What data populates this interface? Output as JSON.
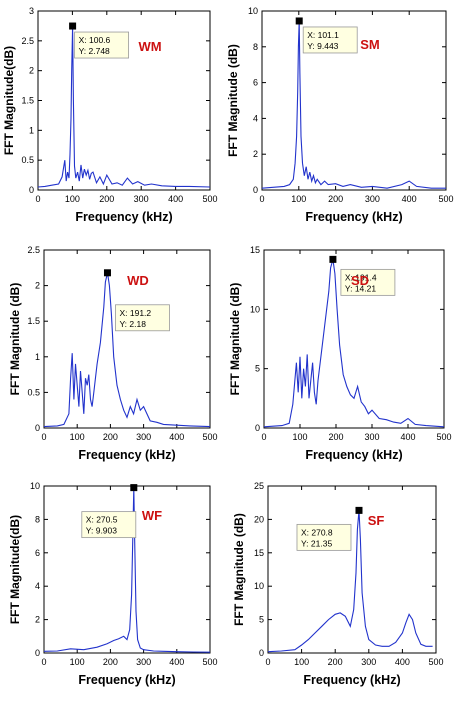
{
  "chart_data": [
    {
      "type": "line",
      "label": "WM",
      "xlabel": "Frequency (kHz)",
      "ylabel": "FFT Magnitude(dB)",
      "xlim": [
        0,
        500
      ],
      "ylim": [
        0,
        3
      ],
      "xticks": [
        "0",
        "100",
        "200",
        "300",
        "400",
        "500"
      ],
      "yticks": [
        "0",
        "0.5",
        "1",
        "1.5",
        "2",
        "2.5",
        "3"
      ],
      "datatip": {
        "x": 100.6,
        "y": 2.748,
        "x_text": "X: 100.6",
        "y_text": "Y: 2.748"
      },
      "series": [
        {
          "color": "#2233cc",
          "x": [
            0,
            20,
            40,
            60,
            70,
            78,
            82,
            86,
            90,
            93,
            96,
            98,
            100.6,
            103,
            106,
            110,
            115,
            120,
            125,
            130,
            135,
            140,
            145,
            150,
            155,
            160,
            170,
            180,
            190,
            200,
            215,
            230,
            245,
            260,
            275,
            290,
            310,
            330,
            360,
            400,
            440,
            500
          ],
          "y": [
            0.05,
            0.06,
            0.08,
            0.1,
            0.22,
            0.5,
            0.15,
            0.3,
            0.2,
            0.6,
            1.2,
            2.0,
            2.748,
            1.5,
            0.4,
            0.2,
            0.3,
            0.15,
            0.42,
            0.2,
            0.35,
            0.25,
            0.33,
            0.18,
            0.28,
            0.3,
            0.12,
            0.22,
            0.1,
            0.25,
            0.1,
            0.12,
            0.08,
            0.2,
            0.1,
            0.14,
            0.08,
            0.1,
            0.07,
            0.06,
            0.06,
            0.05
          ]
        }
      ]
    },
    {
      "type": "line",
      "label": "SM",
      "xlabel": "Frequency (kHz)",
      "ylabel": "FFT Magnitude (dB)",
      "xlim": [
        0,
        500
      ],
      "ylim": [
        0,
        10
      ],
      "xticks": [
        "0",
        "100",
        "200",
        "300",
        "400",
        "500"
      ],
      "yticks": [
        "0",
        "2",
        "4",
        "6",
        "8",
        "10"
      ],
      "datatip": {
        "x": 101.1,
        "y": 9.443,
        "x_text": "X: 101.1",
        "y_text": "Y: 9.443"
      },
      "series": [
        {
          "color": "#2233cc",
          "x": [
            0,
            30,
            60,
            75,
            85,
            90,
            94,
            97,
            99,
            101.1,
            103,
            106,
            110,
            115,
            120,
            125,
            130,
            135,
            140,
            145,
            150,
            160,
            170,
            180,
            200,
            220,
            240,
            270,
            300,
            340,
            380,
            400,
            420,
            460,
            500
          ],
          "y": [
            0.1,
            0.15,
            0.2,
            0.3,
            0.6,
            1.5,
            3.0,
            5.5,
            8.0,
            9.443,
            6.5,
            3.0,
            1.5,
            0.8,
            1.3,
            0.6,
            1.0,
            0.5,
            0.8,
            0.4,
            0.6,
            0.3,
            0.5,
            0.3,
            0.35,
            0.2,
            0.3,
            0.15,
            0.2,
            0.1,
            0.3,
            0.5,
            0.2,
            0.1,
            0.1
          ]
        }
      ]
    },
    {
      "type": "line",
      "label": "WD",
      "xlabel": "Frequency (kHz)",
      "ylabel": "FFT Magnitude (dB)",
      "xlim": [
        0,
        500
      ],
      "ylim": [
        0,
        2.5
      ],
      "xticks": [
        "0",
        "100",
        "200",
        "300",
        "400",
        "500"
      ],
      "yticks": [
        "0",
        "0.5",
        "1",
        "1.5",
        "2",
        "2.5"
      ],
      "datatip": {
        "x": 191.2,
        "y": 2.18,
        "x_text": "X: 191.2",
        "y_text": "Y: 2.18"
      },
      "series": [
        {
          "color": "#2233cc",
          "x": [
            0,
            40,
            60,
            75,
            80,
            85,
            90,
            95,
            100,
            105,
            110,
            115,
            120,
            125,
            130,
            135,
            140,
            145,
            150,
            160,
            170,
            180,
            185,
            191.2,
            197,
            203,
            210,
            220,
            230,
            240,
            250,
            260,
            270,
            280,
            290,
            300,
            320,
            340,
            360,
            400,
            440,
            500
          ],
          "y": [
            0.02,
            0.03,
            0.05,
            0.2,
            0.7,
            1.05,
            0.4,
            0.9,
            0.6,
            0.3,
            0.8,
            0.5,
            0.2,
            0.7,
            0.6,
            0.75,
            0.4,
            0.3,
            0.5,
            0.9,
            1.2,
            1.7,
            2.05,
            2.18,
            2.0,
            1.6,
            1.0,
            0.6,
            0.4,
            0.25,
            0.15,
            0.3,
            0.2,
            0.4,
            0.25,
            0.3,
            0.1,
            0.08,
            0.05,
            0.04,
            0.03,
            0.02
          ]
        }
      ]
    },
    {
      "type": "line",
      "label": "SD",
      "xlabel": "Frequency (kHz)",
      "ylabel": "FFT Magnitude (dB)",
      "xlim": [
        0,
        500
      ],
      "ylim": [
        0,
        15
      ],
      "xticks": [
        "0",
        "100",
        "200",
        "300",
        "400",
        "500"
      ],
      "yticks": [
        "0",
        "5",
        "10",
        "15"
      ],
      "datatip": {
        "x": 191.4,
        "y": 14.21,
        "x_text": "X: 191.4",
        "y_text": "Y: 14.21"
      },
      "series": [
        {
          "color": "#2233cc",
          "x": [
            0,
            50,
            70,
            80,
            90,
            95,
            100,
            105,
            110,
            115,
            120,
            125,
            130,
            135,
            140,
            145,
            150,
            160,
            170,
            180,
            185,
            191.4,
            197,
            203,
            210,
            220,
            230,
            240,
            250,
            260,
            270,
            280,
            290,
            300,
            320,
            340,
            360,
            380,
            400,
            420,
            450,
            500
          ],
          "y": [
            0.1,
            0.2,
            0.4,
            2.0,
            5.5,
            3.0,
            6.0,
            2.5,
            5.0,
            3.5,
            6.2,
            2.5,
            4.0,
            5.5,
            3.0,
            2.0,
            4.0,
            6.5,
            9.0,
            11.5,
            13.5,
            14.21,
            13.0,
            10.0,
            7.0,
            4.5,
            3.5,
            2.8,
            2.5,
            3.5,
            2.2,
            1.8,
            1.2,
            1.5,
            0.8,
            0.7,
            0.5,
            0.4,
            0.8,
            0.3,
            0.2,
            0.1
          ]
        }
      ]
    },
    {
      "type": "line",
      "label": "WF",
      "xlabel": "Frequency (kHz)",
      "ylabel": "FFT Magnitude(dB)",
      "xlim": [
        0,
        500
      ],
      "ylim": [
        0,
        10
      ],
      "xticks": [
        "0",
        "100",
        "200",
        "300",
        "400",
        "500"
      ],
      "yticks": [
        "0",
        "2",
        "4",
        "6",
        "8",
        "10"
      ],
      "datatip": {
        "x": 270.5,
        "y": 9.903,
        "x_text": "X: 270.5",
        "y_text": "Y: 9.903"
      },
      "series": [
        {
          "color": "#2233cc",
          "x": [
            0,
            40,
            80,
            120,
            160,
            190,
            210,
            225,
            240,
            250,
            258,
            264,
            268,
            270.5,
            273,
            277,
            282,
            290,
            300,
            330,
            360,
            400,
            450,
            500
          ],
          "y": [
            0.1,
            0.12,
            0.25,
            0.2,
            0.35,
            0.55,
            0.75,
            0.85,
            1.0,
            0.8,
            1.4,
            3.5,
            7.5,
            9.903,
            7.0,
            2.5,
            0.8,
            0.3,
            0.2,
            0.12,
            0.1,
            0.08,
            0.06,
            0.05
          ]
        }
      ]
    },
    {
      "type": "line",
      "label": "SF",
      "xlabel": "Frequency (kHz)",
      "ylabel": "FFT Magnitude (dB)",
      "xlim": [
        0,
        500
      ],
      "ylim": [
        0,
        25
      ],
      "xticks": [
        "0",
        "100",
        "200",
        "300",
        "400",
        "500"
      ],
      "yticks": [
        "0",
        "5",
        "10",
        "15",
        "20",
        "25"
      ],
      "datatip": {
        "x": 270.8,
        "y": 21.35,
        "x_text": "X: 270.8",
        "y_text": "Y: 21.35"
      },
      "series": [
        {
          "color": "#2233cc",
          "x": [
            0,
            40,
            80,
            100,
            120,
            140,
            160,
            180,
            200,
            215,
            230,
            245,
            255,
            262,
            266,
            270.8,
            275,
            280,
            290,
            300,
            320,
            340,
            360,
            380,
            400,
            410,
            420,
            430,
            440,
            455,
            470,
            490
          ],
          "y": [
            0.2,
            0.3,
            0.5,
            1.2,
            2.0,
            3.0,
            4.0,
            5.0,
            5.8,
            6.0,
            5.5,
            4.0,
            6.5,
            12.0,
            18.5,
            21.35,
            17.0,
            9.0,
            4.0,
            2.0,
            1.2,
            1.0,
            1.0,
            1.6,
            3.0,
            4.5,
            5.8,
            5.0,
            3.0,
            1.3,
            1.0,
            1.0
          ]
        }
      ]
    }
  ]
}
